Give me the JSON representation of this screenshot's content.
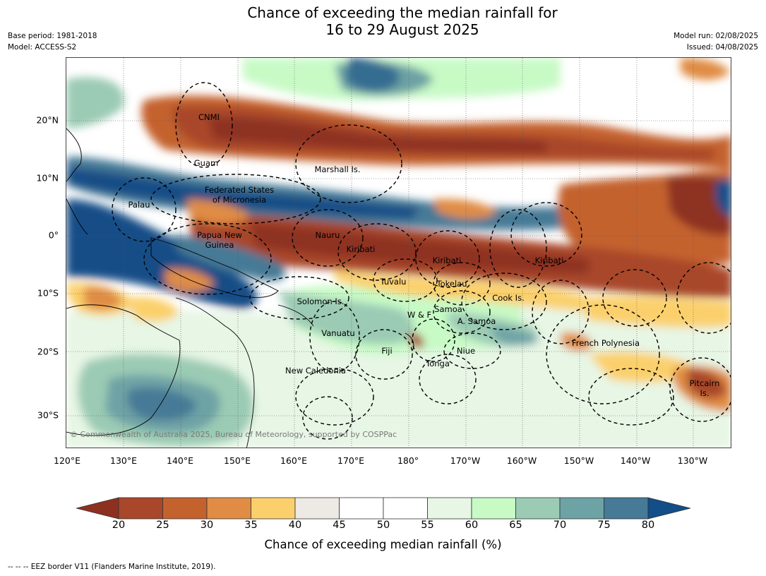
{
  "title_line1": "Chance of exceeding the median rainfall for",
  "title_line2": "16 to 29 August 2025",
  "meta": {
    "base_period": "Base period: 1981-2018",
    "model": "Model: ACCESS-S2",
    "model_run": "Model run: 02/08/2025",
    "issued": "Issued: 04/08/2025"
  },
  "lat_labels": [
    "20°N",
    "10°N",
    "0°",
    "10°S",
    "20°S",
    "30°S"
  ],
  "lon_labels": [
    "120°E",
    "130°E",
    "140°E",
    "150°E",
    "160°E",
    "170°E",
    "180°",
    "170°W",
    "160°W",
    "150°W",
    "140°W",
    "130°W"
  ],
  "places": {
    "cnmi": "CNMI",
    "guam": "Guam",
    "marshall": "Marshall Is.",
    "fsm1": "Federated States",
    "fsm2": "of Micronesia",
    "palau": "Palau",
    "png1": "Papua New",
    "png2": "Guinea",
    "nauru": "Nauru",
    "kiribati_w": "Kiribati",
    "kiribati_c": "Kiribati",
    "kiribati_e": "Kiribati",
    "tuvalu": "Tuvalu",
    "tokelau": "Tokelau",
    "cook": "Cook Is.",
    "solomon": "Solomon Is.",
    "wf": "W & F",
    "samoa": "Samoa",
    "asamoa": "A. Samoa",
    "vanuatu": "Vanuatu",
    "fiji": "Fiji",
    "niue": "Niue",
    "tonga": "Tonga",
    "french_poly": "French Polynesia",
    "newcal": "New Caledonia",
    "pitcairn1": "Pitcairn",
    "pitcairn2": "Is."
  },
  "copyright": "© Commonwealth of Australia 2025, Bureau of Meteorology, supported by COSPPac",
  "colorbar": {
    "ticks": [
      "20",
      "25",
      "30",
      "35",
      "40",
      "45",
      "50",
      "55",
      "60",
      "65",
      "70",
      "75",
      "80"
    ],
    "label": "Chance of exceeding median rainfall (%)",
    "colors": {
      "under": "#8e3020",
      "c20_25": "#a9472a",
      "c25_30": "#c4622e",
      "c30_35": "#e08c44",
      "c35_40": "#fbd06c",
      "c40_45": "#ede9e4",
      "c45_50": "#ffffff",
      "c50_55": "#ffffff",
      "c55_60": "#e7f6e5",
      "c60_65": "#c8fac6",
      "c65_70": "#9bcbb4",
      "c70_75": "#6ea3a6",
      "c75_80": "#467a96",
      "over": "#124e87"
    }
  },
  "footer": "--  --  -- EEZ border V11 (Flanders Marine Institute, 2019)."
}
